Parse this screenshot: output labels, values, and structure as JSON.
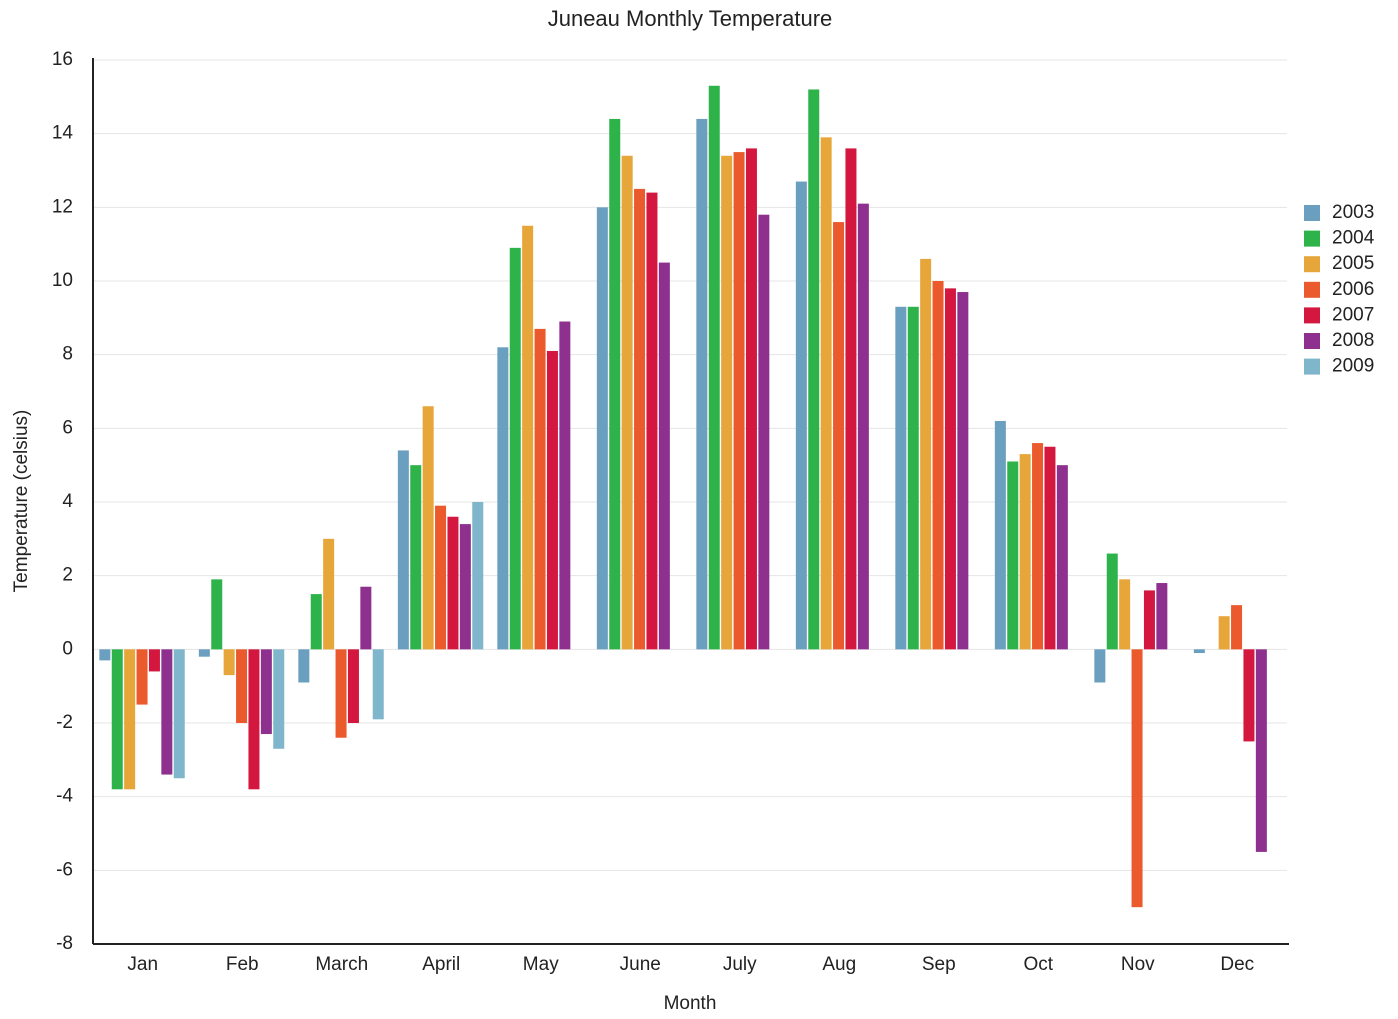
{
  "chart_data": {
    "type": "bar",
    "title": "Juneau Monthly Temperature",
    "x_label": "Month",
    "y_label": "Temperature (celsius)",
    "categories": [
      "Jan",
      "Feb",
      "March",
      "April",
      "May",
      "June",
      "July",
      "Aug",
      "Sep",
      "Oct",
      "Nov",
      "Dec"
    ],
    "series": [
      {
        "name": "2003",
        "color": "#6a9fbf",
        "values": [
          -0.3,
          -0.2,
          -0.9,
          5.4,
          8.2,
          12.0,
          14.4,
          12.7,
          9.3,
          6.2,
          -0.9,
          -0.1
        ]
      },
      {
        "name": "2004",
        "color": "#2db34a",
        "values": [
          -3.8,
          1.9,
          1.5,
          5.0,
          10.9,
          14.4,
          15.3,
          15.2,
          9.3,
          5.1,
          2.6,
          null
        ]
      },
      {
        "name": "2005",
        "color": "#e6a63a",
        "values": [
          -3.8,
          -0.7,
          3.0,
          6.6,
          11.5,
          13.4,
          13.4,
          13.9,
          10.6,
          5.3,
          1.9,
          0.9
        ]
      },
      {
        "name": "2006",
        "color": "#ea5a2c",
        "values": [
          -1.5,
          -2.0,
          -2.4,
          3.9,
          8.7,
          12.5,
          13.5,
          11.6,
          10.0,
          5.6,
          -7.0,
          1.2
        ]
      },
      {
        "name": "2007",
        "color": "#d3173f",
        "values": [
          -0.6,
          -3.8,
          -2.0,
          3.6,
          8.1,
          12.4,
          13.6,
          13.6,
          9.8,
          5.5,
          1.6,
          -2.5
        ]
      },
      {
        "name": "2008",
        "color": "#8e308e",
        "values": [
          -3.4,
          -2.3,
          1.7,
          3.4,
          8.9,
          10.5,
          11.8,
          12.1,
          9.7,
          5.0,
          1.8,
          -5.5
        ]
      },
      {
        "name": "2009",
        "color": "#80b6cb",
        "values": [
          -3.5,
          -2.7,
          -1.9,
          4.0,
          null,
          null,
          null,
          null,
          null,
          null,
          null,
          null
        ]
      }
    ],
    "ylim": [
      -8,
      16
    ],
    "yticks": [
      -8,
      -6,
      -4,
      -2,
      0,
      2,
      4,
      6,
      8,
      10,
      12,
      14,
      16
    ],
    "grid": true,
    "legend": "right"
  }
}
